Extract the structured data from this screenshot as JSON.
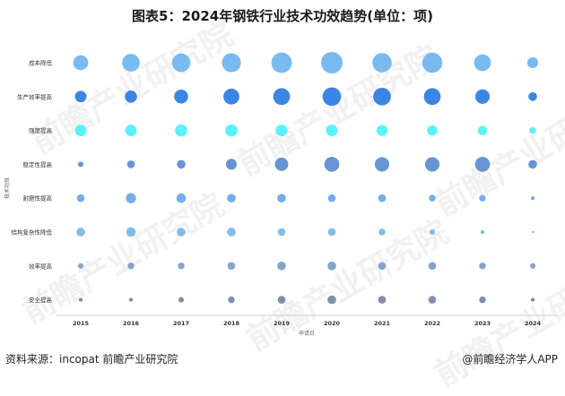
{
  "title": "图表5：2024年钢铁行业技术功效趋势(单位：项)",
  "footer": {
    "source": "资料来源：incopat 前瞻产业研究院",
    "brand": "@前瞻经济学人APP"
  },
  "watermark": "前瞻产业研究院",
  "chart_data": {
    "type": "bubble",
    "title": "图表5：2024年钢铁行业技术功效趋势(单位：项)",
    "xlabel": "申请日",
    "ylabel": "技术功效",
    "categories": [
      "2015",
      "2016",
      "2017",
      "2018",
      "2019",
      "2020",
      "2021",
      "2022",
      "2023",
      "2024"
    ],
    "series": [
      {
        "name": "成本降低",
        "color": "#72b6f0",
        "values": [
          15,
          21,
          23,
          24,
          28,
          31,
          25,
          27,
          19,
          8
        ]
      },
      {
        "name": "生产效率提高",
        "color": "#3080e0",
        "values": [
          9,
          10,
          13,
          17,
          19,
          23,
          21,
          19,
          14,
          5
        ]
      },
      {
        "name": "强度提高",
        "color": "#4ff2ff",
        "values": [
          9,
          9,
          10,
          10,
          9,
          9,
          8,
          7,
          6,
          3
        ]
      },
      {
        "name": "稳定性提高",
        "color": "#5f8fd0",
        "values": [
          2,
          4,
          5,
          8,
          12,
          15,
          14,
          14,
          15,
          5
        ]
      },
      {
        "name": "耐磨性提高",
        "color": "#6ea8ec",
        "values": [
          4,
          7,
          6,
          5,
          5,
          4,
          4,
          3,
          3,
          1
        ]
      },
      {
        "name": "结构复杂性降低",
        "color": "#7ab8e8",
        "values": [
          5,
          6,
          5,
          5,
          4,
          4,
          3,
          2,
          1,
          0.3
        ]
      },
      {
        "name": "效率提高",
        "color": "#7f9fc8",
        "values": [
          2,
          3,
          3,
          4,
          5,
          5,
          4,
          4,
          3,
          2
        ]
      },
      {
        "name": "安全提高",
        "color": "#7a88a8",
        "values": [
          1,
          1,
          2,
          3,
          4,
          5,
          4,
          4,
          3,
          1
        ]
      }
    ]
  }
}
